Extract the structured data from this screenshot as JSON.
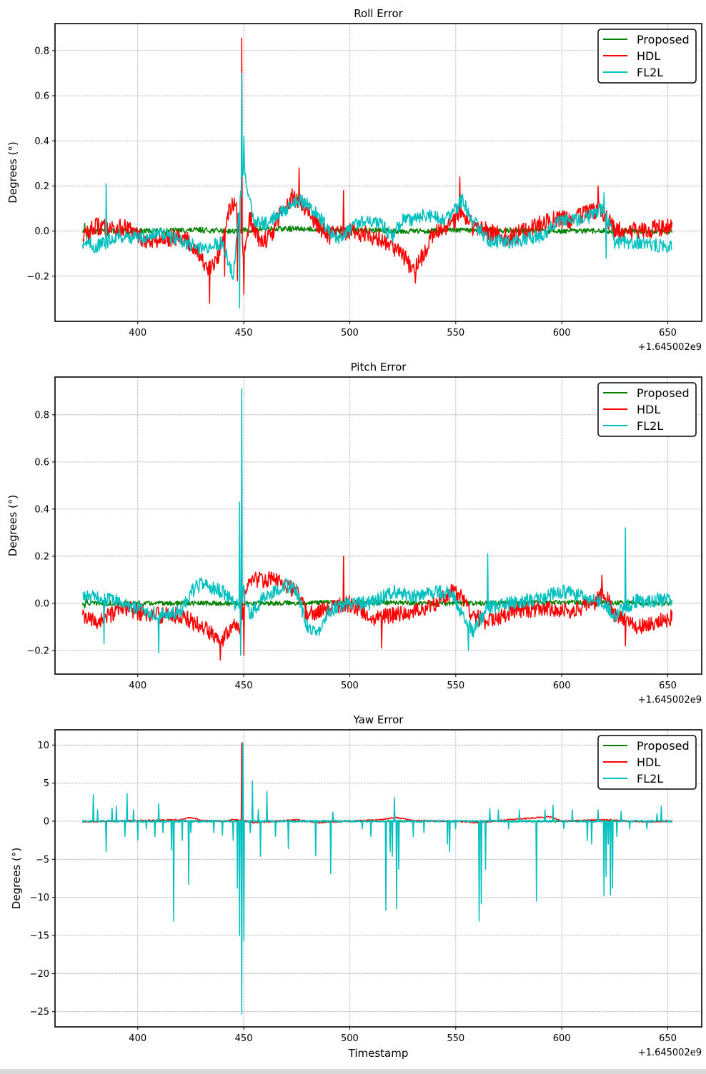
{
  "chart_data": [
    {
      "type": "line",
      "title": "Roll Error",
      "xlabel": "",
      "ylabel": "Degrees (°)",
      "xlim": [
        361,
        666
      ],
      "ylim": [
        -0.4,
        0.92
      ],
      "xticks": [
        400,
        450,
        500,
        550,
        600,
        650
      ],
      "xtick_labels": [
        "400",
        "450",
        "500",
        "550",
        "600",
        "650"
      ],
      "yticks": [
        -0.2,
        0.0,
        0.2,
        0.4,
        0.6,
        0.8
      ],
      "ytick_labels": [
        "−0.2",
        "0.0",
        "0.2",
        "0.4",
        "0.6",
        "0.8"
      ],
      "offset_text": "+1.645002e9",
      "grid": true,
      "legend_position": "top-right",
      "series": [
        {
          "name": "Proposed",
          "color": "#008000",
          "noise": 0.012,
          "x": [
            375,
            380,
            400,
            430,
            445,
            460,
            480,
            500,
            530,
            560,
            600,
            620,
            650
          ],
          "values": [
            0.0,
            0.0,
            0.0,
            0.005,
            0.0,
            0.01,
            0.01,
            0.005,
            0.0,
            0.005,
            0.0,
            0.0,
            0.0
          ],
          "spikes": [
            [
              375,
              0.035
            ],
            [
              376,
              -0.03
            ]
          ]
        },
        {
          "name": "HDL",
          "color": "#ff0000",
          "noise": 0.04,
          "x": [
            375,
            380,
            395,
            405,
            420,
            428,
            433,
            438,
            443,
            446,
            448,
            450,
            453,
            458,
            463,
            468,
            473,
            478,
            483,
            490,
            500,
            510,
            518,
            525,
            530,
            535,
            540,
            548,
            553,
            558,
            565,
            575,
            585,
            595,
            605,
            612,
            618,
            625,
            635,
            652
          ],
          "values": [
            -0.02,
            0.02,
            0.01,
            -0.05,
            -0.02,
            -0.08,
            -0.18,
            -0.12,
            0.1,
            0.12,
            0.0,
            -0.1,
            0.05,
            -0.05,
            -0.02,
            0.1,
            0.15,
            0.12,
            0.05,
            -0.02,
            0.0,
            -0.02,
            -0.05,
            -0.1,
            -0.18,
            -0.1,
            0.0,
            0.03,
            0.08,
            0.02,
            0.0,
            -0.03,
            0.01,
            0.05,
            0.05,
            0.08,
            0.1,
            0.0,
            0.0,
            0.02
          ],
          "spikes": [
            [
              449,
              0.855
            ],
            [
              450,
              -0.28
            ],
            [
              434,
              -0.32
            ],
            [
              447,
              -0.22
            ],
            [
              476,
              0.28
            ],
            [
              497,
              0.18
            ],
            [
              552,
              0.24
            ],
            [
              531,
              -0.23
            ],
            [
              617,
              0.2
            ],
            [
              441,
              -0.2
            ]
          ]
        },
        {
          "name": "FL2L",
          "color": "#00bfbf",
          "noise": 0.03,
          "x": [
            375,
            380,
            385,
            390,
            400,
            410,
            420,
            430,
            440,
            445,
            448,
            450,
            452,
            455,
            460,
            470,
            475,
            480,
            485,
            490,
            495,
            505,
            515,
            520,
            525,
            530,
            535,
            540,
            545,
            550,
            553,
            558,
            565,
            575,
            585,
            590,
            600,
            610,
            620,
            625,
            635,
            652
          ],
          "values": [
            -0.05,
            -0.07,
            -0.05,
            -0.02,
            -0.03,
            -0.01,
            -0.04,
            -0.08,
            -0.05,
            -0.2,
            0.1,
            0.3,
            0.15,
            0.05,
            0.03,
            0.1,
            0.14,
            0.12,
            0.08,
            0.0,
            -0.04,
            0.05,
            0.03,
            -0.03,
            0.05,
            0.05,
            0.07,
            0.06,
            0.05,
            0.1,
            0.14,
            0.05,
            -0.04,
            -0.05,
            -0.03,
            -0.02,
            0.05,
            0.05,
            0.1,
            -0.05,
            -0.05,
            -0.07
          ],
          "spikes": [
            [
              449,
              0.7
            ],
            [
              448,
              -0.34
            ],
            [
              385,
              0.21
            ],
            [
              450,
              0.42
            ],
            [
              620,
              0.17
            ],
            [
              621,
              -0.12
            ]
          ]
        }
      ]
    },
    {
      "type": "line",
      "title": "Pitch Error",
      "xlabel": "",
      "ylabel": "Degrees (°)",
      "xlim": [
        361,
        666
      ],
      "ylim": [
        -0.3,
        0.96
      ],
      "xticks": [
        400,
        450,
        500,
        550,
        600,
        650
      ],
      "xtick_labels": [
        "400",
        "450",
        "500",
        "550",
        "600",
        "650"
      ],
      "yticks": [
        -0.2,
        0.0,
        0.2,
        0.4,
        0.6,
        0.8
      ],
      "ytick_labels": [
        "−0.2",
        "0.0",
        "0.2",
        "0.4",
        "0.6",
        "0.8"
      ],
      "offset_text": "+1.645002e9",
      "grid": true,
      "legend_position": "top-right",
      "series": [
        {
          "name": "Proposed",
          "color": "#008000",
          "noise": 0.01,
          "x": [
            375,
            400,
            450,
            500,
            550,
            600,
            652
          ],
          "values": [
            0.0,
            0.0,
            0.0,
            0.005,
            0.0,
            0.005,
            0.0
          ],
          "spikes": [
            [
              375,
              -0.02
            ],
            [
              376,
              0.02
            ]
          ]
        },
        {
          "name": "HDL",
          "color": "#ff0000",
          "noise": 0.035,
          "x": [
            375,
            380,
            395,
            405,
            420,
            430,
            440,
            445,
            448,
            452,
            458,
            465,
            470,
            475,
            480,
            490,
            500,
            510,
            520,
            530,
            540,
            548,
            553,
            558,
            565,
            575,
            590,
            605,
            615,
            620,
            625,
            635,
            652
          ],
          "values": [
            -0.06,
            -0.08,
            -0.02,
            -0.05,
            -0.05,
            -0.1,
            -0.15,
            -0.08,
            -0.12,
            0.1,
            0.1,
            0.1,
            0.08,
            0.05,
            -0.05,
            -0.02,
            0.0,
            -0.06,
            -0.05,
            -0.04,
            0.0,
            0.05,
            0.03,
            -0.05,
            -0.08,
            -0.04,
            -0.02,
            -0.03,
            0.0,
            0.05,
            -0.05,
            -0.1,
            -0.06
          ],
          "spikes": [
            [
              439,
              -0.24
            ],
            [
              497,
              0.2
            ],
            [
              515,
              -0.19
            ],
            [
              449,
              0.55
            ],
            [
              450,
              -0.22
            ],
            [
              619,
              0.12
            ],
            [
              630,
              -0.18
            ]
          ]
        },
        {
          "name": "FL2L",
          "color": "#00bfbf",
          "noise": 0.03,
          "x": [
            375,
            390,
            400,
            410,
            420,
            425,
            430,
            440,
            445,
            448,
            450,
            453,
            460,
            470,
            475,
            480,
            485,
            490,
            500,
            510,
            520,
            530,
            540,
            548,
            553,
            558,
            565,
            575,
            590,
            600,
            610,
            620,
            625,
            635,
            652
          ],
          "values": [
            0.03,
            0.01,
            -0.02,
            -0.05,
            -0.04,
            0.05,
            0.08,
            0.05,
            0.0,
            0.0,
            0.05,
            -0.05,
            0.03,
            0.08,
            0.05,
            -0.1,
            -0.12,
            -0.03,
            0.0,
            0.0,
            0.05,
            0.03,
            0.05,
            0.04,
            -0.05,
            -0.12,
            -0.02,
            0.0,
            0.02,
            0.05,
            0.03,
            0.0,
            -0.05,
            0.01,
            0.02
          ],
          "spikes": [
            [
              449,
              0.91
            ],
            [
              448,
              0.43
            ],
            [
              410,
              -0.21
            ],
            [
              565,
              0.21
            ],
            [
              630,
              0.32
            ],
            [
              448.5,
              -0.22
            ],
            [
              384,
              -0.17
            ],
            [
              556,
              -0.2
            ]
          ]
        }
      ]
    },
    {
      "type": "line",
      "title": "Yaw Error",
      "xlabel": "Timestamp",
      "ylabel": "Degrees (°)",
      "xlim": [
        361,
        666
      ],
      "ylim": [
        -27,
        12
      ],
      "xticks": [
        400,
        450,
        500,
        550,
        600,
        650
      ],
      "xtick_labels": [
        "400",
        "450",
        "500",
        "550",
        "600",
        "650"
      ],
      "yticks": [
        -25,
        -20,
        -15,
        -10,
        -5,
        0,
        5,
        10
      ],
      "ytick_labels": [
        "−25",
        "−20",
        "−15",
        "−10",
        "−5",
        "0",
        "5",
        "10"
      ],
      "offset_text": "+1.645002e9",
      "grid": true,
      "legend_position": "top-right",
      "series": [
        {
          "name": "Proposed",
          "color": "#008000",
          "noise": 0.05,
          "x": [
            375,
            450,
            500,
            550,
            600,
            652
          ],
          "values": [
            0.0,
            0.0,
            0.0,
            0.0,
            0.0,
            0.0
          ],
          "spikes": [
            [
              596,
              0.6
            ]
          ]
        },
        {
          "name": "HDL",
          "color": "#ff0000",
          "noise": 0.08,
          "x": [
            375,
            400,
            420,
            425,
            430,
            440,
            445,
            450,
            455,
            465,
            475,
            485,
            500,
            515,
            522,
            530,
            550,
            560,
            575,
            595,
            600,
            620,
            640,
            652
          ],
          "values": [
            -0.1,
            0.1,
            0.2,
            0.5,
            0.1,
            0.0,
            0.2,
            0.1,
            -0.2,
            0.0,
            0.2,
            -0.2,
            0.0,
            0.2,
            0.5,
            0.1,
            0.0,
            -0.2,
            0.2,
            0.6,
            0.0,
            0.2,
            -0.1,
            0.0
          ],
          "spikes": [
            [
              449,
              10.3
            ]
          ]
        },
        {
          "name": "FL2L",
          "color": "#00bfbf",
          "noise": 0.15,
          "x": [
            375,
            450,
            500,
            550,
            600,
            652
          ],
          "values": [
            0.0,
            0.0,
            0.0,
            0.0,
            0.0,
            0.0
          ],
          "spikes": [
            [
              379,
              3.5
            ],
            [
              381,
              1.5
            ],
            [
              385,
              -4.0
            ],
            [
              388,
              1.7
            ],
            [
              390,
              2.0
            ],
            [
              394,
              -2.0
            ],
            [
              395,
              3.6
            ],
            [
              398,
              1.5
            ],
            [
              400,
              -2.5
            ],
            [
              404,
              -1.0
            ],
            [
              408,
              -2.0
            ],
            [
              410,
              2.3
            ],
            [
              412,
              -1.5
            ],
            [
              416,
              -3.8
            ],
            [
              417,
              -13.1
            ],
            [
              421,
              -2.5
            ],
            [
              424,
              -8.3
            ],
            [
              425,
              -1.5
            ],
            [
              436,
              -1.5
            ],
            [
              440,
              -1.8
            ],
            [
              445,
              -2.5
            ],
            [
              447,
              -8.8
            ],
            [
              448,
              -15.0
            ],
            [
              449,
              -25.3
            ],
            [
              449.5,
              10.3
            ],
            [
              450,
              -15.7
            ],
            [
              453,
              -1.5
            ],
            [
              454,
              5.3
            ],
            [
              457,
              1.5
            ],
            [
              458,
              -4.6
            ],
            [
              461,
              3.9
            ],
            [
              465,
              -2.0
            ],
            [
              471,
              -3.6
            ],
            [
              484,
              -4.5
            ],
            [
              491,
              -6.9
            ],
            [
              492,
              1.2
            ],
            [
              506,
              -1.0
            ],
            [
              510,
              -2.0
            ],
            [
              517,
              -11.7
            ],
            [
              519,
              -4.0
            ],
            [
              520,
              -4.6
            ],
            [
              521,
              3.1
            ],
            [
              522,
              -11.5
            ],
            [
              523,
              -6.3
            ],
            [
              530,
              -2.0
            ],
            [
              535,
              -1.5
            ],
            [
              546,
              -3.0
            ],
            [
              547,
              -4.0
            ],
            [
              550,
              -1.0
            ],
            [
              561,
              -13.1
            ],
            [
              562,
              -10.8
            ],
            [
              564,
              -6.3
            ],
            [
              566,
              1.6
            ],
            [
              570,
              1.5
            ],
            [
              575,
              -1.0
            ],
            [
              580,
              1.5
            ],
            [
              588,
              -10.5
            ],
            [
              592,
              1.5
            ],
            [
              596,
              2.1
            ],
            [
              601,
              -1.0
            ],
            [
              605,
              1.5
            ],
            [
              612,
              -2.5
            ],
            [
              614,
              -3.0
            ],
            [
              617,
              1.5
            ],
            [
              620,
              -9.8
            ],
            [
              621,
              -7.3
            ],
            [
              622,
              -3.0
            ],
            [
              623,
              -9.7
            ],
            [
              624,
              -8.8
            ],
            [
              626,
              -2.0
            ],
            [
              628,
              1.3
            ],
            [
              632,
              -1.0
            ],
            [
              640,
              -1.0
            ],
            [
              645,
              1.0
            ],
            [
              647,
              2.0
            ]
          ]
        }
      ]
    }
  ]
}
